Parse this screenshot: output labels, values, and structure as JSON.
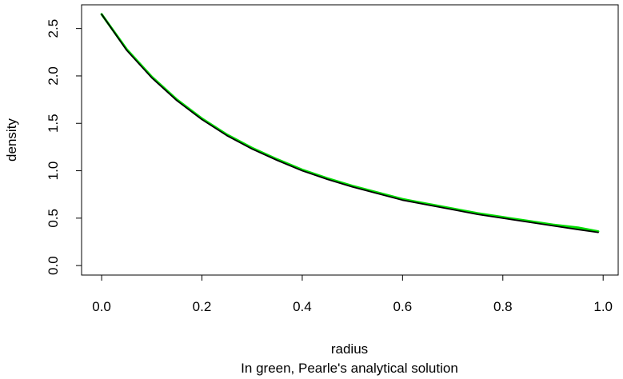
{
  "chart_data": {
    "type": "line",
    "xlabel": "radius",
    "ylabel": "density",
    "caption": "In green, Pearle's analytical solution",
    "xlim": [
      -0.04,
      1.03
    ],
    "ylim": [
      -0.1,
      2.75
    ],
    "xticks": [
      0.0,
      0.2,
      0.4,
      0.6,
      0.8,
      1.0
    ],
    "xtick_labels": [
      "0.0",
      "0.2",
      "0.4",
      "0.6",
      "0.8",
      "1.0"
    ],
    "yticks": [
      0.0,
      0.5,
      1.0,
      1.5,
      2.0,
      2.5
    ],
    "ytick_labels": [
      "0.0",
      "0.5",
      "1.0",
      "1.5",
      "2.0",
      "2.5"
    ],
    "grid": false,
    "legend": "none",
    "series": [
      {
        "color": "#00dd00",
        "x": [
          0.0,
          0.05,
          0.1,
          0.15,
          0.2,
          0.25,
          0.3,
          0.35,
          0.4,
          0.45,
          0.5,
          0.55,
          0.6,
          0.65,
          0.7,
          0.75,
          0.8,
          0.85,
          0.9,
          0.95,
          0.99
        ],
        "values": [
          2.65,
          2.28,
          1.99,
          1.75,
          1.55,
          1.38,
          1.24,
          1.12,
          1.01,
          0.92,
          0.84,
          0.77,
          0.7,
          0.65,
          0.6,
          0.55,
          0.51,
          0.47,
          0.43,
          0.4,
          0.36
        ]
      },
      {
        "color": "#000000",
        "x": [
          0.0,
          0.05,
          0.1,
          0.15,
          0.2,
          0.25,
          0.3,
          0.35,
          0.4,
          0.45,
          0.5,
          0.55,
          0.6,
          0.65,
          0.7,
          0.75,
          0.8,
          0.85,
          0.9,
          0.95,
          0.99
        ],
        "values": [
          2.65,
          2.27,
          1.98,
          1.74,
          1.54,
          1.37,
          1.23,
          1.11,
          1.0,
          0.91,
          0.83,
          0.76,
          0.69,
          0.64,
          0.59,
          0.54,
          0.5,
          0.46,
          0.42,
          0.38,
          0.35
        ]
      }
    ]
  }
}
